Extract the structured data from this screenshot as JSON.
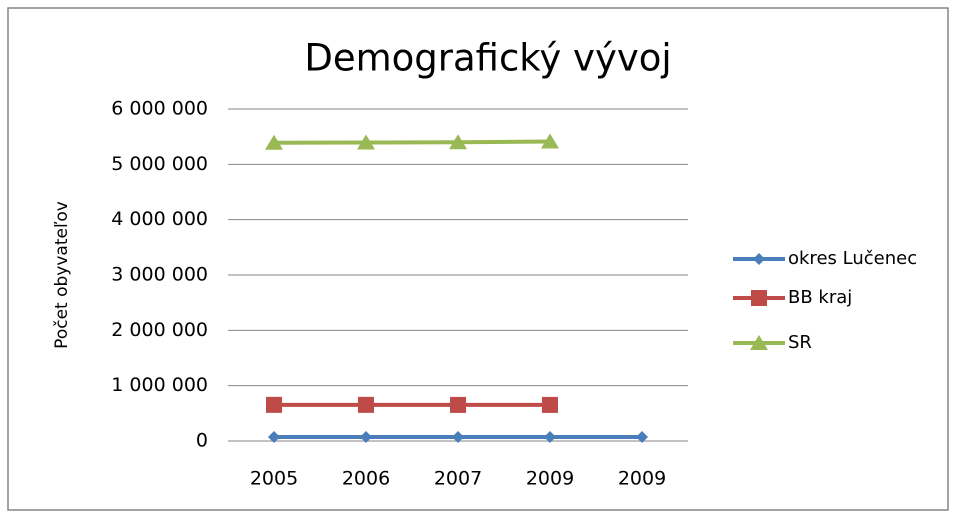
{
  "chart_data": {
    "type": "line",
    "title": "Demografický vývoj",
    "y_label": "Počet obyvateľov",
    "categories": [
      "2005",
      "2006",
      "2007",
      "2009",
      "2009"
    ],
    "series": [
      {
        "name": "okres Lučenec",
        "color": "#4a7ebb",
        "marker": "diamond",
        "values": [
          73000,
          73000,
          73000,
          73000,
          73000
        ]
      },
      {
        "name": "BB kraj",
        "color": "#be4b48",
        "marker": "square",
        "values": [
          653000,
          653000,
          652000,
          652000,
          null
        ]
      },
      {
        "name": "SR",
        "color": "#98b954",
        "marker": "triangle",
        "values": [
          5389000,
          5394000,
          5400000,
          5412000,
          null
        ]
      }
    ],
    "ylim": [
      0,
      6000000
    ],
    "yticks": [
      0,
      {
        "value": 1000000,
        "label": "1 000 000"
      },
      {
        "value": 2000000,
        "label": "2 000 000"
      },
      {
        "value": 3000000,
        "label": "3 000 000"
      },
      {
        "value": 4000000,
        "label": "4 000 000"
      },
      {
        "value": 5000000,
        "label": "5 000 000"
      },
      {
        "value": 6000000,
        "label": "6 000 000"
      }
    ],
    "grid": true,
    "legend": "right"
  }
}
